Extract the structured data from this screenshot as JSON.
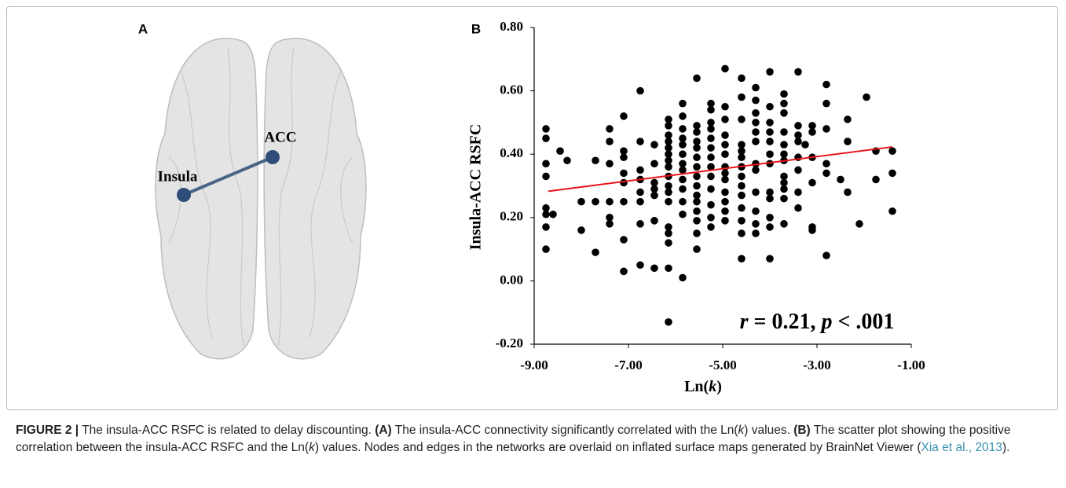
{
  "panel_a": {
    "label": "A",
    "nodes": [
      {
        "label": "Insula"
      },
      {
        "label": "ACC"
      }
    ]
  },
  "chart_data": {
    "type": "scatter",
    "panel_label": "B",
    "xlabel": [
      "Ln(",
      "k",
      ")"
    ],
    "ylabel": "Insula-ACC RSFC",
    "annotation": [
      "r",
      " = 0.21, ",
      "p",
      " < .001"
    ],
    "xlim": [
      -9,
      -1
    ],
    "ylim": [
      -0.2,
      0.8
    ],
    "xticks": [
      {
        "value": -9,
        "label": "-9.00"
      },
      {
        "value": -7,
        "label": "-7.00"
      },
      {
        "value": -5,
        "label": "-5.00"
      },
      {
        "value": -3,
        "label": "-3.00"
      },
      {
        "value": -1,
        "label": "-1.00"
      }
    ],
    "yticks": [
      {
        "value": -0.2,
        "label": "-0.20"
      },
      {
        "value": 0,
        "label": "0.00"
      },
      {
        "value": 0.2,
        "label": "0.20"
      },
      {
        "value": 0.4,
        "label": "0.40"
      },
      {
        "value": 0.6,
        "label": "0.60"
      },
      {
        "value": 0.8,
        "label": "0.80"
      }
    ],
    "color": "#000000",
    "x": [
      -8.75,
      -8.75,
      -8.75,
      -8.75,
      -8.75,
      -8.75,
      -8.75,
      -8.75,
      -8.6,
      -8.45,
      -8.3,
      -8.0,
      -8.0,
      -7.7,
      -7.7,
      -7.7,
      -7.4,
      -7.4,
      -7.4,
      -7.4,
      -7.4,
      -7.4,
      -7.1,
      -7.1,
      -7.1,
      -7.1,
      -7.1,
      -7.1,
      -7.1,
      -7.1,
      -6.75,
      -6.75,
      -6.75,
      -6.75,
      -6.75,
      -6.75,
      -6.75,
      -6.75,
      -6.45,
      -6.45,
      -6.45,
      -6.45,
      -6.45,
      -6.45,
      -6.45,
      -6.15,
      -6.15,
      -6.15,
      -6.15,
      -6.15,
      -6.15,
      -6.15,
      -6.15,
      -6.15,
      -6.15,
      -6.15,
      -6.15,
      -6.15,
      -6.15,
      -6.15,
      -6.15,
      -6.15,
      -5.85,
      -5.85,
      -5.85,
      -5.85,
      -5.85,
      -5.85,
      -5.85,
      -5.85,
      -5.85,
      -5.85,
      -5.85,
      -5.85,
      -5.85,
      -5.55,
      -5.55,
      -5.55,
      -5.55,
      -5.55,
      -5.55,
      -5.55,
      -5.55,
      -5.55,
      -5.55,
      -5.55,
      -5.55,
      -5.55,
      -5.55,
      -5.55,
      -5.25,
      -5.25,
      -5.25,
      -5.25,
      -5.25,
      -5.25,
      -5.25,
      -5.25,
      -5.25,
      -5.25,
      -5.25,
      -5.25,
      -5.25,
      -4.95,
      -4.95,
      -4.95,
      -4.95,
      -4.95,
      -4.95,
      -4.95,
      -4.95,
      -4.95,
      -4.95,
      -4.95,
      -4.95,
      -4.95,
      -4.6,
      -4.6,
      -4.6,
      -4.6,
      -4.6,
      -4.6,
      -4.6,
      -4.6,
      -4.6,
      -4.6,
      -4.6,
      -4.6,
      -4.6,
      -4.6,
      -4.3,
      -4.3,
      -4.3,
      -4.3,
      -4.3,
      -4.3,
      -4.3,
      -4.3,
      -4.3,
      -4.3,
      -4.3,
      -4.3,
      -4.0,
      -4.0,
      -4.0,
      -4.0,
      -4.0,
      -4.0,
      -4.0,
      -4.0,
      -4.0,
      -4.0,
      -4.0,
      -4.0,
      -3.7,
      -3.7,
      -3.7,
      -3.7,
      -3.7,
      -3.7,
      -3.7,
      -3.7,
      -3.7,
      -3.7,
      -3.7,
      -3.7,
      -3.4,
      -3.4,
      -3.4,
      -3.4,
      -3.4,
      -3.4,
      -3.4,
      -3.4,
      -3.25,
      -3.1,
      -3.1,
      -3.1,
      -3.1,
      -3.1,
      -3.1,
      -2.8,
      -2.8,
      -2.8,
      -2.8,
      -2.8,
      -2.8,
      -2.5,
      -2.35,
      -2.35,
      -2.35,
      -2.1,
      -1.95,
      -1.75,
      -1.75,
      -1.4,
      -1.4,
      -1.4
    ],
    "values": [
      0.48,
      0.45,
      0.37,
      0.33,
      0.23,
      0.21,
      0.17,
      0.1,
      0.21,
      0.41,
      0.38,
      0.25,
      0.16,
      0.38,
      0.25,
      0.09,
      0.48,
      0.44,
      0.37,
      0.25,
      0.2,
      0.18,
      0.52,
      0.41,
      0.39,
      0.34,
      0.31,
      0.25,
      0.13,
      0.03,
      0.6,
      0.44,
      0.35,
      0.32,
      0.28,
      0.25,
      0.18,
      0.05,
      0.43,
      0.37,
      0.31,
      0.29,
      0.27,
      0.19,
      0.04,
      0.51,
      0.49,
      0.46,
      0.44,
      0.42,
      0.4,
      0.38,
      0.36,
      0.33,
      0.3,
      0.28,
      0.25,
      0.17,
      0.15,
      0.12,
      0.04,
      -0.13,
      0.56,
      0.52,
      0.48,
      0.45,
      0.43,
      0.4,
      0.37,
      0.35,
      0.32,
      0.29,
      0.25,
      0.21,
      0.01,
      0.64,
      0.49,
      0.47,
      0.44,
      0.42,
      0.39,
      0.36,
      0.33,
      0.3,
      0.27,
      0.25,
      0.22,
      0.19,
      0.15,
      0.1,
      0.56,
      0.54,
      0.5,
      0.48,
      0.45,
      0.42,
      0.39,
      0.36,
      0.33,
      0.29,
      0.24,
      0.2,
      0.17,
      0.67,
      0.55,
      0.51,
      0.46,
      0.43,
      0.4,
      0.36,
      0.34,
      0.32,
      0.28,
      0.25,
      0.22,
      0.19,
      0.64,
      0.58,
      0.51,
      0.43,
      0.41,
      0.39,
      0.36,
      0.33,
      0.3,
      0.27,
      0.23,
      0.19,
      0.15,
      0.07,
      0.61,
      0.57,
      0.53,
      0.5,
      0.47,
      0.44,
      0.37,
      0.35,
      0.28,
      0.22,
      0.18,
      0.15,
      0.66,
      0.55,
      0.5,
      0.47,
      0.44,
      0.4,
      0.37,
      0.28,
      0.26,
      0.2,
      0.17,
      0.07,
      0.59,
      0.56,
      0.53,
      0.47,
      0.43,
      0.4,
      0.38,
      0.33,
      0.31,
      0.29,
      0.26,
      0.18,
      0.66,
      0.49,
      0.46,
      0.44,
      0.39,
      0.35,
      0.28,
      0.23,
      0.43,
      0.49,
      0.47,
      0.39,
      0.31,
      0.17,
      0.16,
      0.62,
      0.56,
      0.48,
      0.37,
      0.34,
      0.08,
      0.32,
      0.51,
      0.44,
      0.28,
      0.18,
      0.58,
      0.41,
      0.32,
      0.41,
      0.34,
      0.22
    ],
    "fit_line": {
      "x": [
        -8.7,
        -1.4
      ],
      "values": [
        0.283,
        0.423
      ],
      "color": "#e8141b"
    }
  },
  "caption": {
    "label": "FIGURE 2 |",
    "parts": [
      " The insula-ACC RSFC is related to delay discounting. ",
      "(A)",
      " The insula-ACC connectivity significantly correlated with the Ln(",
      "k",
      ") values. ",
      "(B)",
      " The scatter plot showing the positive correlation between the insula-ACC RSFC and the Ln(",
      "k",
      ") values. Nodes and edges in the networks are overlaid on inflated surface maps generated by BrainNet Viewer (",
      "Xia et al., 2013",
      ")."
    ]
  }
}
